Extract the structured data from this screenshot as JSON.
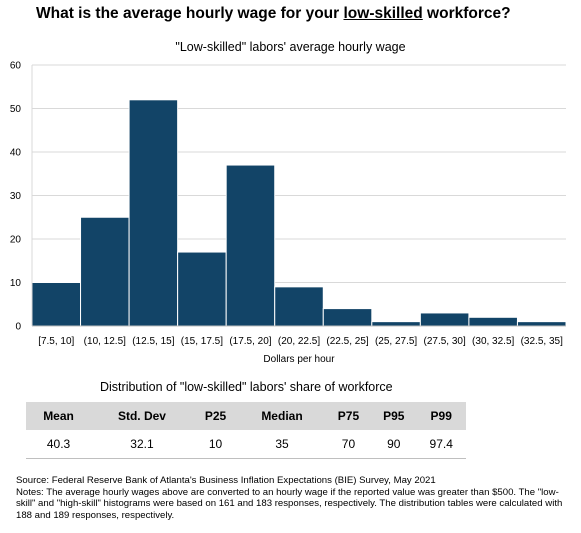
{
  "headline": {
    "prefix": "What is the average hourly wage for your ",
    "emphasis": "low-skilled",
    "suffix": " workforce?"
  },
  "chart_data": {
    "type": "bar",
    "title": "\"Low-skilled\" labors' average hourly wage",
    "xlabel": "Dollars per hour",
    "ylabel": "",
    "categories": [
      "[7.5, 10]",
      "(10, 12.5]",
      "(12.5, 15]",
      "(15, 17.5]",
      "(17.5, 20]",
      "(20, 22.5]",
      "(22.5, 25]",
      "(25, 27.5]",
      "(27.5, 30]",
      "(30, 32.5]",
      "(32.5, 35]"
    ],
    "values": [
      10,
      25,
      52,
      17,
      37,
      9,
      4,
      1,
      3,
      2,
      1
    ],
    "ylim": [
      0,
      60
    ],
    "yticks": [
      0,
      10,
      20,
      30,
      40,
      50,
      60
    ],
    "grid": true,
    "bar_color": "#124467"
  },
  "distribution": {
    "title": "Distribution of \"low-skilled\" labors' share of workforce",
    "headers": [
      "Mean",
      "Std. Dev",
      "P25",
      "Median",
      "P75",
      "P95",
      "P99"
    ],
    "values": [
      "40.3",
      "32.1",
      "10",
      "35",
      "70",
      "90",
      "97.4"
    ]
  },
  "footer": {
    "source": "Source: Federal Reserve Bank of Atlanta's Business Inflation Expectations (BIE) Survey, May 2021",
    "notes": "Notes: The average hourly wages above are converted to an hourly wage if the reported value was greater than $500. The \"low-skill\" and \"high-skill\" histograms were based on 161 and 183 responses, respectively. The distribution tables were calculated with 188 and 189 responses, respectively."
  }
}
